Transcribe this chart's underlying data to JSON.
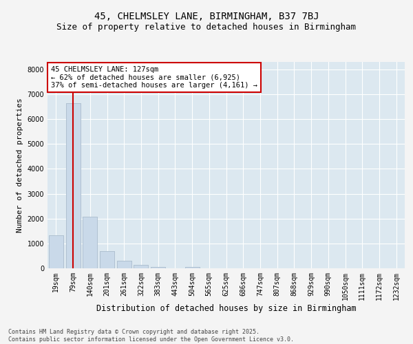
{
  "title1": "45, CHELMSLEY LANE, BIRMINGHAM, B37 7BJ",
  "title2": "Size of property relative to detached houses in Birmingham",
  "xlabel": "Distribution of detached houses by size in Birmingham",
  "ylabel": "Number of detached properties",
  "categories": [
    "19sqm",
    "79sqm",
    "140sqm",
    "201sqm",
    "261sqm",
    "322sqm",
    "383sqm",
    "443sqm",
    "504sqm",
    "565sqm",
    "625sqm",
    "686sqm",
    "747sqm",
    "807sqm",
    "868sqm",
    "929sqm",
    "990sqm",
    "1050sqm",
    "1111sqm",
    "1172sqm",
    "1232sqm"
  ],
  "values": [
    1320,
    6640,
    2080,
    680,
    300,
    130,
    60,
    0,
    60,
    0,
    0,
    0,
    0,
    0,
    0,
    0,
    0,
    0,
    0,
    0,
    0
  ],
  "bar_color": "#c9d9e9",
  "bar_edgecolor": "#aabccc",
  "vline_x_idx": 1,
  "vline_color": "#cc0000",
  "annotation_text": "45 CHELMSLEY LANE: 127sqm\n← 62% of detached houses are smaller (6,925)\n37% of semi-detached houses are larger (4,161) →",
  "annotation_box_facecolor": "#ffffff",
  "annotation_box_edgecolor": "#cc0000",
  "ylim": [
    0,
    8300
  ],
  "yticks": [
    0,
    1000,
    2000,
    3000,
    4000,
    5000,
    6000,
    7000,
    8000
  ],
  "plot_bg": "#dce8f0",
  "grid_color": "#ffffff",
  "fig_bg": "#f4f4f4",
  "footer_text": "Contains HM Land Registry data © Crown copyright and database right 2025.\nContains public sector information licensed under the Open Government Licence v3.0.",
  "title1_fontsize": 10,
  "title2_fontsize": 9,
  "xlabel_fontsize": 8.5,
  "ylabel_fontsize": 8,
  "tick_fontsize": 7,
  "annot_fontsize": 7.5,
  "footer_fontsize": 6
}
